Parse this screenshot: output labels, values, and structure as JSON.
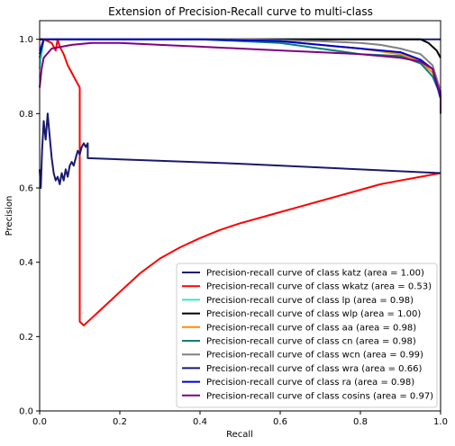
{
  "chart_data": {
    "type": "line",
    "title": "Extension of Precision-Recall curve to multi-class",
    "xlabel": "Recall",
    "ylabel": "Precision",
    "xlim": [
      0,
      1
    ],
    "ylim": [
      0,
      1.05
    ],
    "grid": false,
    "legend_position": "lower-right",
    "x_ticks": [
      "0.0",
      "0.2",
      "0.4",
      "0.6",
      "0.8",
      "1.0"
    ],
    "y_ticks": [
      "0.0",
      "0.2",
      "0.4",
      "0.6",
      "0.8",
      "1.0"
    ],
    "series": [
      {
        "name": "Precision-recall curve of class katz (area = 1.00)",
        "color": "#191970",
        "points": [
          [
            0,
            1.0
          ],
          [
            0.99,
            1.0
          ],
          [
            1.0,
            1.0
          ]
        ]
      },
      {
        "name": "Precision-recall curve of class wkatz (area = 0.53)",
        "color": "#ff0000",
        "points": [
          [
            0,
            1.0
          ],
          [
            0.01,
            1.0
          ],
          [
            0.03,
            0.99
          ],
          [
            0.04,
            0.97
          ],
          [
            0.045,
            1.0
          ],
          [
            0.05,
            0.98
          ],
          [
            0.06,
            0.96
          ],
          [
            0.07,
            0.93
          ],
          [
            0.08,
            0.91
          ],
          [
            0.09,
            0.89
          ],
          [
            0.1,
            0.87
          ],
          [
            0.1,
            0.24
          ],
          [
            0.11,
            0.23
          ],
          [
            0.12,
            0.24
          ],
          [
            0.15,
            0.27
          ],
          [
            0.2,
            0.32
          ],
          [
            0.25,
            0.37
          ],
          [
            0.3,
            0.41
          ],
          [
            0.35,
            0.44
          ],
          [
            0.4,
            0.465
          ],
          [
            0.45,
            0.487
          ],
          [
            0.5,
            0.505
          ],
          [
            0.55,
            0.52
          ],
          [
            0.6,
            0.535
          ],
          [
            0.65,
            0.55
          ],
          [
            0.7,
            0.565
          ],
          [
            0.75,
            0.58
          ],
          [
            0.8,
            0.595
          ],
          [
            0.85,
            0.61
          ],
          [
            0.9,
            0.62
          ],
          [
            0.95,
            0.63
          ],
          [
            1.0,
            0.64
          ]
        ]
      },
      {
        "name": "Precision-recall curve of class lp (area = 0.98)",
        "color": "#40e0d0",
        "points": [
          [
            0,
            0.92
          ],
          [
            0.01,
            1.0
          ],
          [
            0.4,
            1.0
          ],
          [
            0.6,
            0.995
          ],
          [
            0.7,
            0.985
          ],
          [
            0.8,
            0.975
          ],
          [
            0.9,
            0.96
          ],
          [
            0.95,
            0.94
          ],
          [
            0.98,
            0.92
          ],
          [
            1.0,
            0.86
          ],
          [
            1.0,
            0.8
          ]
        ]
      },
      {
        "name": "Precision-recall curve of class wlp (area = 1.00)",
        "color": "#000000",
        "points": [
          [
            0,
            1.0
          ],
          [
            0.6,
            1.0
          ],
          [
            0.9,
            1.0
          ],
          [
            0.95,
            1.0
          ],
          [
            0.97,
            0.99
          ],
          [
            0.99,
            0.97
          ],
          [
            1.0,
            0.95
          ]
        ]
      },
      {
        "name": "Precision-recall curve of class aa (area = 0.98)",
        "color": "#ff8c00",
        "points": [
          [
            0,
            0.95
          ],
          [
            0.01,
            1.0
          ],
          [
            0.4,
            1.0
          ],
          [
            0.6,
            0.995
          ],
          [
            0.7,
            0.985
          ],
          [
            0.8,
            0.975
          ],
          [
            0.9,
            0.96
          ],
          [
            0.95,
            0.94
          ],
          [
            0.98,
            0.91
          ],
          [
            1.0,
            0.85
          ],
          [
            1.0,
            0.8
          ]
        ]
      },
      {
        "name": "Precision-recall curve of class cn (area = 0.98)",
        "color": "#008080",
        "points": [
          [
            0,
            0.95
          ],
          [
            0.01,
            1.0
          ],
          [
            0.4,
            1.0
          ],
          [
            0.6,
            0.99
          ],
          [
            0.7,
            0.975
          ],
          [
            0.8,
            0.96
          ],
          [
            0.9,
            0.955
          ],
          [
            0.95,
            0.935
          ],
          [
            0.98,
            0.9
          ],
          [
            1.0,
            0.85
          ],
          [
            1.0,
            0.8
          ]
        ]
      },
      {
        "name": "Precision-recall curve of class wcn (area = 0.99)",
        "color": "#808080",
        "points": [
          [
            0,
            0.97
          ],
          [
            0.01,
            1.0
          ],
          [
            0.5,
            1.0
          ],
          [
            0.7,
            0.995
          ],
          [
            0.8,
            0.99
          ],
          [
            0.85,
            0.985
          ],
          [
            0.9,
            0.975
          ],
          [
            0.95,
            0.96
          ],
          [
            0.98,
            0.93
          ],
          [
            1.0,
            0.86
          ],
          [
            1.0,
            0.8
          ]
        ]
      },
      {
        "name": "Precision-recall curve of class wra (area = 0.66)",
        "color": "#191970",
        "points": [
          [
            0,
            0.65
          ],
          [
            0.003,
            0.6
          ],
          [
            0.006,
            0.7
          ],
          [
            0.01,
            0.78
          ],
          [
            0.015,
            0.73
          ],
          [
            0.02,
            0.8
          ],
          [
            0.025,
            0.74
          ],
          [
            0.03,
            0.68
          ],
          [
            0.035,
            0.64
          ],
          [
            0.04,
            0.62
          ],
          [
            0.045,
            0.63
          ],
          [
            0.05,
            0.61
          ],
          [
            0.055,
            0.64
          ],
          [
            0.06,
            0.62
          ],
          [
            0.065,
            0.65
          ],
          [
            0.07,
            0.63
          ],
          [
            0.075,
            0.66
          ],
          [
            0.08,
            0.67
          ],
          [
            0.085,
            0.66
          ],
          [
            0.09,
            0.68
          ],
          [
            0.095,
            0.7
          ],
          [
            0.1,
            0.69
          ],
          [
            0.105,
            0.71
          ],
          [
            0.11,
            0.72
          ],
          [
            0.115,
            0.71
          ],
          [
            0.12,
            0.72
          ],
          [
            0.12,
            0.68
          ],
          [
            0.5,
            0.665
          ],
          [
            1.0,
            0.64
          ]
        ]
      },
      {
        "name": "Precision-recall curve of class ra (area = 0.98)",
        "color": "#0000cd",
        "points": [
          [
            0,
            0.96
          ],
          [
            0.01,
            1.0
          ],
          [
            0.4,
            1.0
          ],
          [
            0.6,
            0.995
          ],
          [
            0.7,
            0.985
          ],
          [
            0.8,
            0.975
          ],
          [
            0.9,
            0.965
          ],
          [
            0.95,
            0.945
          ],
          [
            0.98,
            0.92
          ],
          [
            0.99,
            0.88
          ],
          [
            1.0,
            0.84
          ],
          [
            1.0,
            0.8
          ]
        ]
      },
      {
        "name": "Precision-recall curve of class cosins (area = 0.97)",
        "color": "#800080",
        "points": [
          [
            0,
            0.87
          ],
          [
            0.005,
            0.92
          ],
          [
            0.01,
            0.95
          ],
          [
            0.03,
            0.975
          ],
          [
            0.08,
            0.985
          ],
          [
            0.13,
            0.99
          ],
          [
            0.2,
            0.99
          ],
          [
            0.3,
            0.985
          ],
          [
            0.4,
            0.98
          ],
          [
            0.5,
            0.975
          ],
          [
            0.6,
            0.97
          ],
          [
            0.7,
            0.965
          ],
          [
            0.8,
            0.96
          ],
          [
            0.9,
            0.95
          ],
          [
            0.95,
            0.94
          ],
          [
            0.98,
            0.92
          ],
          [
            1.0,
            0.85
          ],
          [
            1.0,
            0.8
          ]
        ]
      }
    ]
  }
}
